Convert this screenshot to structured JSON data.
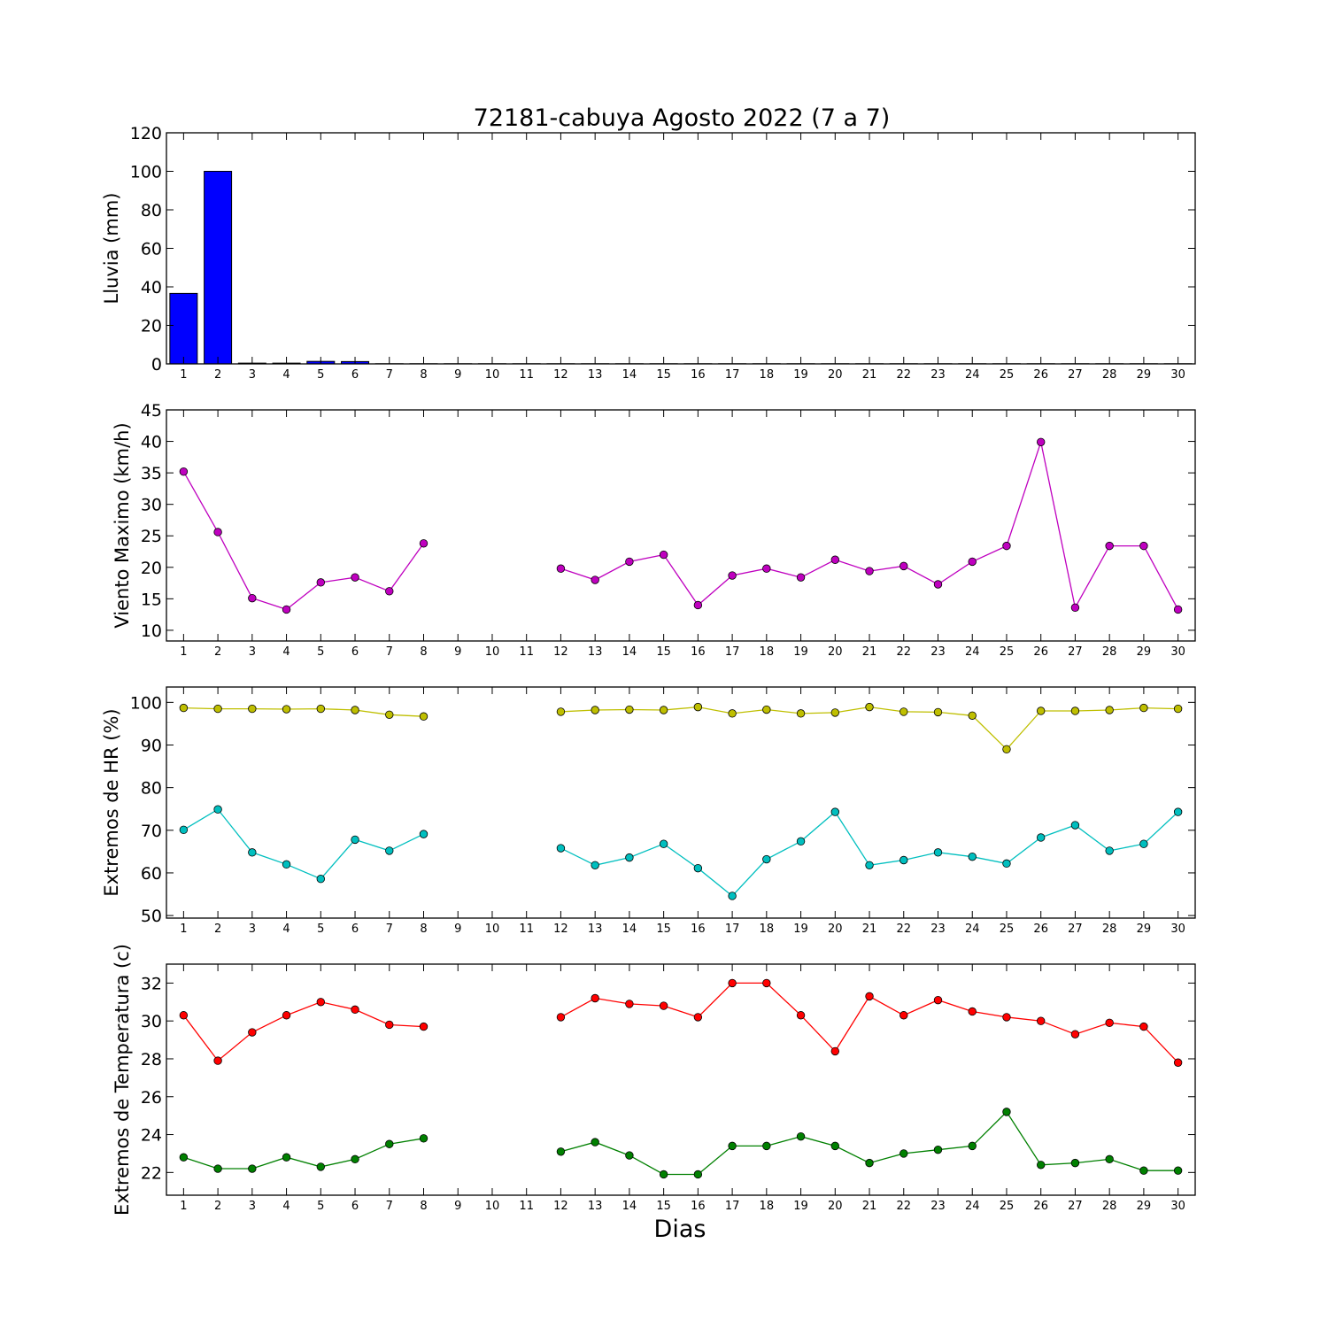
{
  "title": "72181-cabuya Agosto 2022  (7 a 7)",
  "xlabel": "Dias",
  "chart_data": [
    {
      "type": "bar",
      "ylabel": "Lluvia (mm)",
      "ylim": [
        0,
        120
      ],
      "yticks": [
        0,
        20,
        40,
        60,
        80,
        100,
        120
      ],
      "xlim": [
        0.5,
        30.5
      ],
      "x": [
        1,
        2,
        3,
        4,
        5,
        6,
        7,
        8,
        9,
        10,
        11,
        12,
        13,
        14,
        15,
        16,
        17,
        18,
        19,
        20,
        21,
        22,
        23,
        24,
        25,
        26,
        27,
        28,
        29,
        30
      ],
      "values": [
        36.6,
        100.0,
        0.4,
        0.4,
        1.3,
        1.2,
        0.1,
        0.1,
        0.1,
        0.1,
        0.1,
        0.1,
        0.1,
        0.1,
        0.1,
        0.1,
        0.1,
        0.1,
        0.1,
        0.1,
        0.1,
        0.1,
        0.1,
        0.1,
        0.1,
        0.1,
        0.1,
        0.1,
        0.1,
        0.1
      ],
      "color": "#0000ff"
    },
    {
      "type": "line",
      "ylabel": "Viento Maximo (km/h)",
      "ylim": [
        8.3,
        45
      ],
      "yticks": [
        10,
        15,
        20,
        25,
        30,
        35,
        40,
        45
      ],
      "xlim": [
        0.5,
        30.5
      ],
      "x": [
        1,
        2,
        3,
        4,
        5,
        6,
        7,
        8,
        9,
        10,
        11,
        12,
        13,
        14,
        15,
        16,
        17,
        18,
        19,
        20,
        21,
        22,
        23,
        24,
        25,
        26,
        27,
        28,
        29,
        30
      ],
      "series": [
        {
          "color": "#bf00bf",
          "values": [
            35.2,
            25.6,
            15.1,
            13.3,
            17.6,
            18.4,
            16.2,
            23.8,
            null,
            null,
            null,
            19.8,
            18.0,
            20.9,
            22.0,
            14.0,
            18.7,
            19.8,
            18.4,
            21.2,
            19.4,
            20.2,
            17.3,
            20.9,
            23.4,
            39.9,
            13.6,
            23.4,
            23.4,
            13.3
          ]
        }
      ]
    },
    {
      "type": "line",
      "ylabel": "Extremos de HR (%)",
      "ylim": [
        49.4,
        103.6
      ],
      "yticks": [
        50,
        60,
        70,
        80,
        90,
        100
      ],
      "xlim": [
        0.5,
        30.5
      ],
      "x": [
        1,
        2,
        3,
        4,
        5,
        6,
        7,
        8,
        9,
        10,
        11,
        12,
        13,
        14,
        15,
        16,
        17,
        18,
        19,
        20,
        21,
        22,
        23,
        24,
        25,
        26,
        27,
        28,
        29,
        30
      ],
      "series": [
        {
          "color": "#bfbf00",
          "values": [
            98.7,
            98.5,
            98.5,
            98.4,
            98.5,
            98.2,
            97.1,
            96.7,
            null,
            null,
            null,
            97.8,
            98.2,
            98.3,
            98.2,
            98.9,
            97.4,
            98.3,
            97.4,
            97.6,
            98.9,
            97.8,
            97.7,
            96.9,
            89.0,
            98.0,
            98.0,
            98.2,
            98.7,
            98.5
          ]
        },
        {
          "color": "#00bfbf",
          "values": [
            70.1,
            74.9,
            64.8,
            62.0,
            58.6,
            67.8,
            65.2,
            69.1,
            null,
            null,
            null,
            65.8,
            61.8,
            63.6,
            66.8,
            61.1,
            54.6,
            63.2,
            67.4,
            74.3,
            61.8,
            63.0,
            64.8,
            63.8,
            62.2,
            68.3,
            71.2,
            65.2,
            66.8,
            74.3
          ]
        }
      ]
    },
    {
      "type": "line",
      "ylabel": "Extremos de Temperatura (c)",
      "ylim": [
        20.8,
        33.0
      ],
      "yticks": [
        22,
        24,
        26,
        28,
        30,
        32
      ],
      "xlim": [
        0.5,
        30.5
      ],
      "x": [
        1,
        2,
        3,
        4,
        5,
        6,
        7,
        8,
        9,
        10,
        11,
        12,
        13,
        14,
        15,
        16,
        17,
        18,
        19,
        20,
        21,
        22,
        23,
        24,
        25,
        26,
        27,
        28,
        29,
        30
      ],
      "series": [
        {
          "color": "#ff0000",
          "values": [
            30.3,
            27.9,
            29.4,
            30.3,
            31.0,
            30.6,
            29.8,
            29.7,
            null,
            null,
            null,
            30.2,
            31.2,
            30.9,
            30.8,
            30.2,
            32.0,
            32.0,
            30.3,
            28.4,
            31.3,
            30.3,
            31.1,
            30.5,
            30.2,
            30.0,
            29.3,
            29.9,
            29.7,
            27.8
          ]
        },
        {
          "color": "#008000",
          "values": [
            22.8,
            22.2,
            22.2,
            22.8,
            22.3,
            22.7,
            23.5,
            23.8,
            null,
            null,
            null,
            23.1,
            23.6,
            22.9,
            21.9,
            21.9,
            23.4,
            23.4,
            23.9,
            23.4,
            22.5,
            23.0,
            23.2,
            23.4,
            25.2,
            22.4,
            22.5,
            22.7,
            22.1,
            22.1
          ]
        }
      ]
    }
  ]
}
